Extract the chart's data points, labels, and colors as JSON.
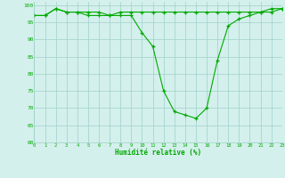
{
  "x": [
    0,
    1,
    2,
    3,
    4,
    5,
    6,
    7,
    8,
    9,
    10,
    11,
    12,
    13,
    14,
    15,
    16,
    17,
    18,
    19,
    20,
    21,
    22,
    23
  ],
  "series1": [
    97,
    97,
    99,
    98,
    98,
    97,
    97,
    97,
    97,
    97,
    92,
    88,
    75,
    69,
    68,
    67,
    70,
    84,
    94,
    96,
    97,
    98,
    99,
    99
  ],
  "series2": [
    97,
    97,
    99,
    98,
    98,
    98,
    98,
    97,
    98,
    98,
    98,
    98,
    98,
    98,
    98,
    98,
    98,
    98,
    98,
    98,
    98,
    98,
    98,
    99
  ],
  "line_color": "#00aa00",
  "bg_color": "#d4f0ec",
  "grid_color": "#9fcfca",
  "xlabel": "Humidité relative (%)",
  "ylim": [
    60,
    101
  ],
  "xlim": [
    0,
    23
  ],
  "yticks": [
    60,
    65,
    70,
    75,
    80,
    85,
    90,
    95,
    100
  ],
  "xticks": [
    0,
    1,
    2,
    3,
    4,
    5,
    6,
    7,
    8,
    9,
    10,
    11,
    12,
    13,
    14,
    15,
    16,
    17,
    18,
    19,
    20,
    21,
    22,
    23
  ],
  "tick_fontsize": 4.0,
  "xlabel_fontsize": 5.5
}
